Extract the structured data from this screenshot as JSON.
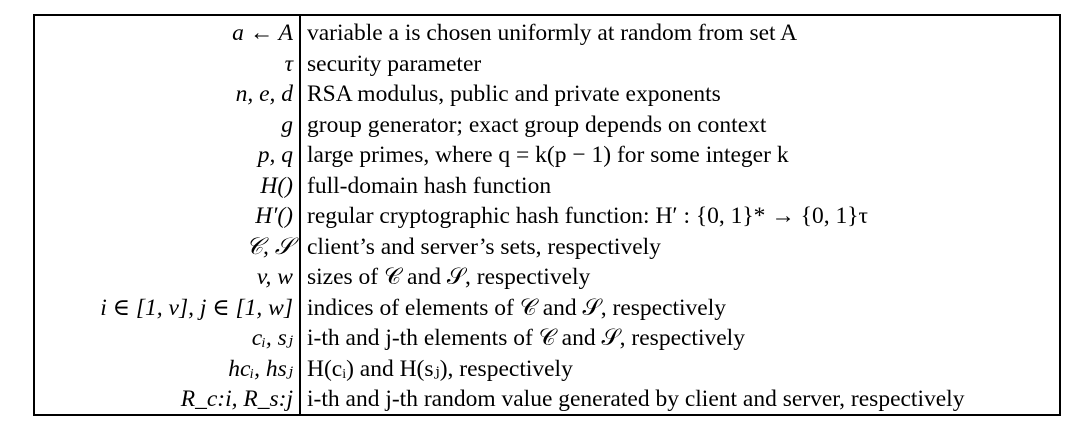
{
  "table": {
    "rows": [
      {
        "symbol": "a ← A",
        "description": "variable a is chosen uniformly at random from set A"
      },
      {
        "symbol": "τ",
        "description": "security parameter"
      },
      {
        "symbol": "n, e, d",
        "description": "RSA modulus, public and private exponents"
      },
      {
        "symbol": "g",
        "description": "group generator; exact group depends on context"
      },
      {
        "symbol": "p, q",
        "description": "large primes, where q = k(p − 1) for some integer k"
      },
      {
        "symbol": "H()",
        "description": "full-domain hash function"
      },
      {
        "symbol": "H′()",
        "description": "regular cryptographic hash function: H′ : {0, 1}* → {0, 1}τ"
      },
      {
        "symbol": "𝒞, 𝒮",
        "description": "client’s and server’s sets, respectively"
      },
      {
        "symbol": "v, w",
        "description": "sizes of 𝒞 and 𝒮, respectively"
      },
      {
        "symbol": "i ∈ [1, v],  j ∈ [1, w]",
        "description": "indices of elements of 𝒞 and 𝒮, respectively"
      },
      {
        "symbol": "cᵢ, sⱼ",
        "description": "i-th and j-th elements of 𝒞 and 𝒮, respectively"
      },
      {
        "symbol": "hcᵢ, hsⱼ",
        "description": "H(cᵢ) and H(sⱼ), respectively"
      },
      {
        "symbol": "R_c:i, R_s:j",
        "description": "i-th and j-th random value generated by client and server, respectively"
      }
    ]
  }
}
